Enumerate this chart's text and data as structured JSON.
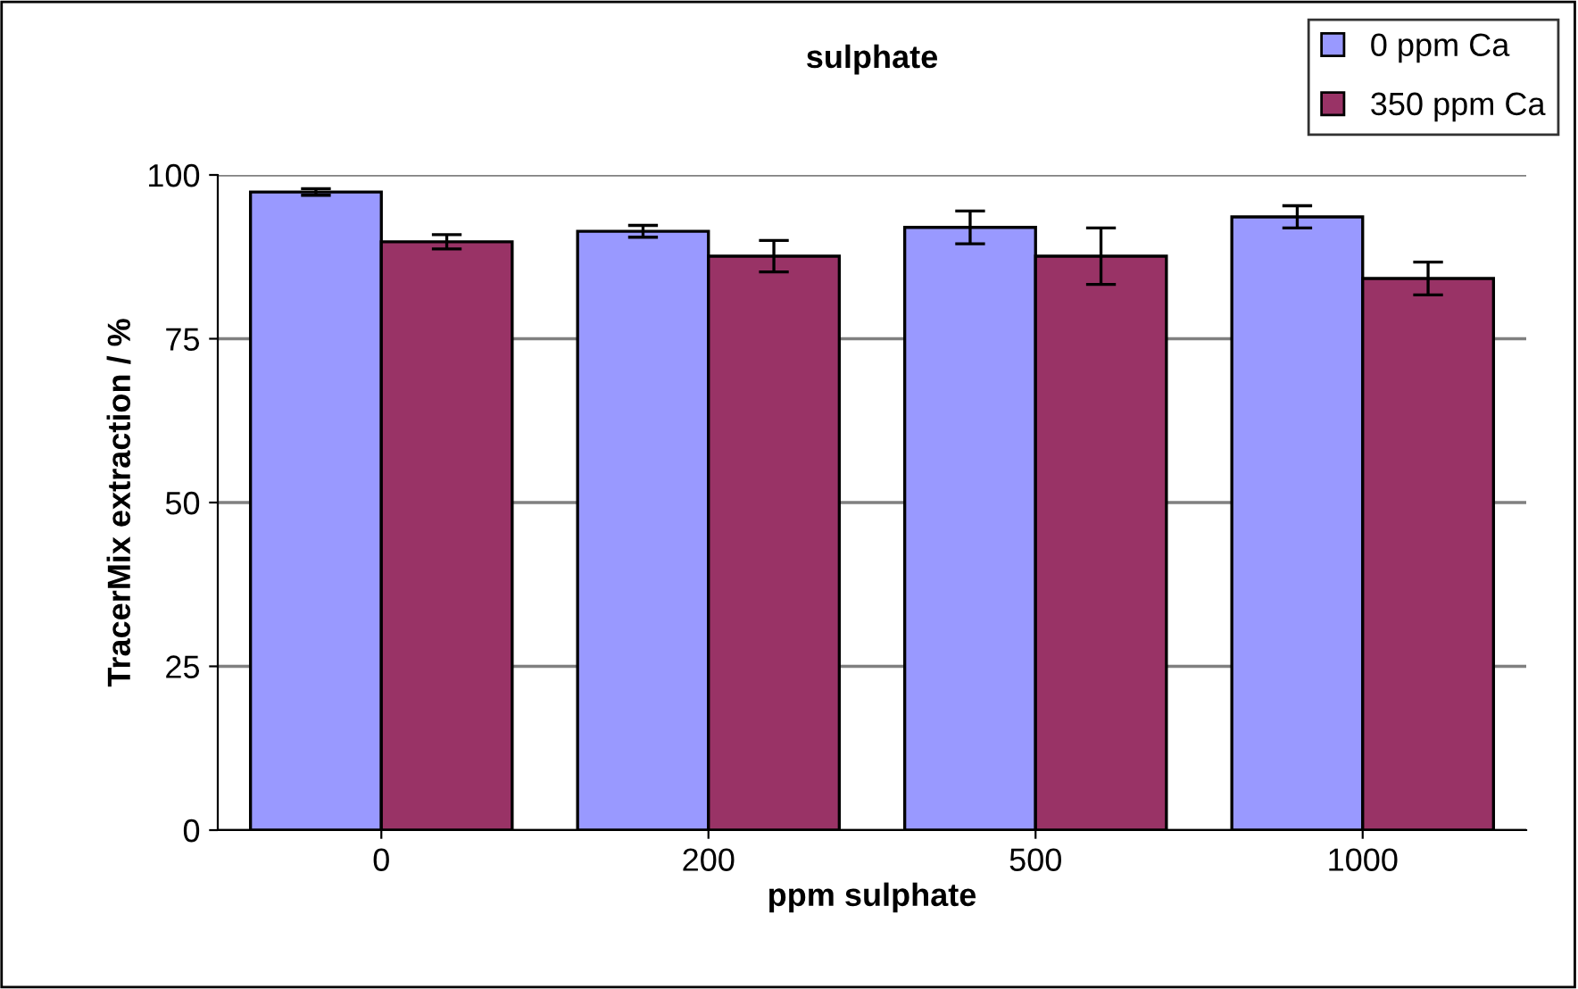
{
  "chart_data": {
    "type": "bar",
    "title": "sulphate",
    "xlabel": "ppm sulphate",
    "ylabel": "TracerMix extraction / %",
    "categories": [
      "0",
      "200",
      "500",
      "1000"
    ],
    "series": [
      {
        "name": "0 ppm Ca",
        "color": "#9999ff",
        "values": [
          97.4,
          91.4,
          92.0,
          93.6
        ],
        "errors": [
          0.5,
          0.9,
          2.5,
          1.7
        ]
      },
      {
        "name": "350 ppm Ca",
        "color": "#993366",
        "values": [
          89.8,
          87.6,
          87.6,
          84.2
        ],
        "errors": [
          1.1,
          2.4,
          4.3,
          2.5
        ]
      }
    ],
    "ylim": [
      0,
      100
    ],
    "yticks": [
      0,
      25,
      50,
      75,
      100
    ],
    "grid": "y",
    "legend": "top right"
  }
}
